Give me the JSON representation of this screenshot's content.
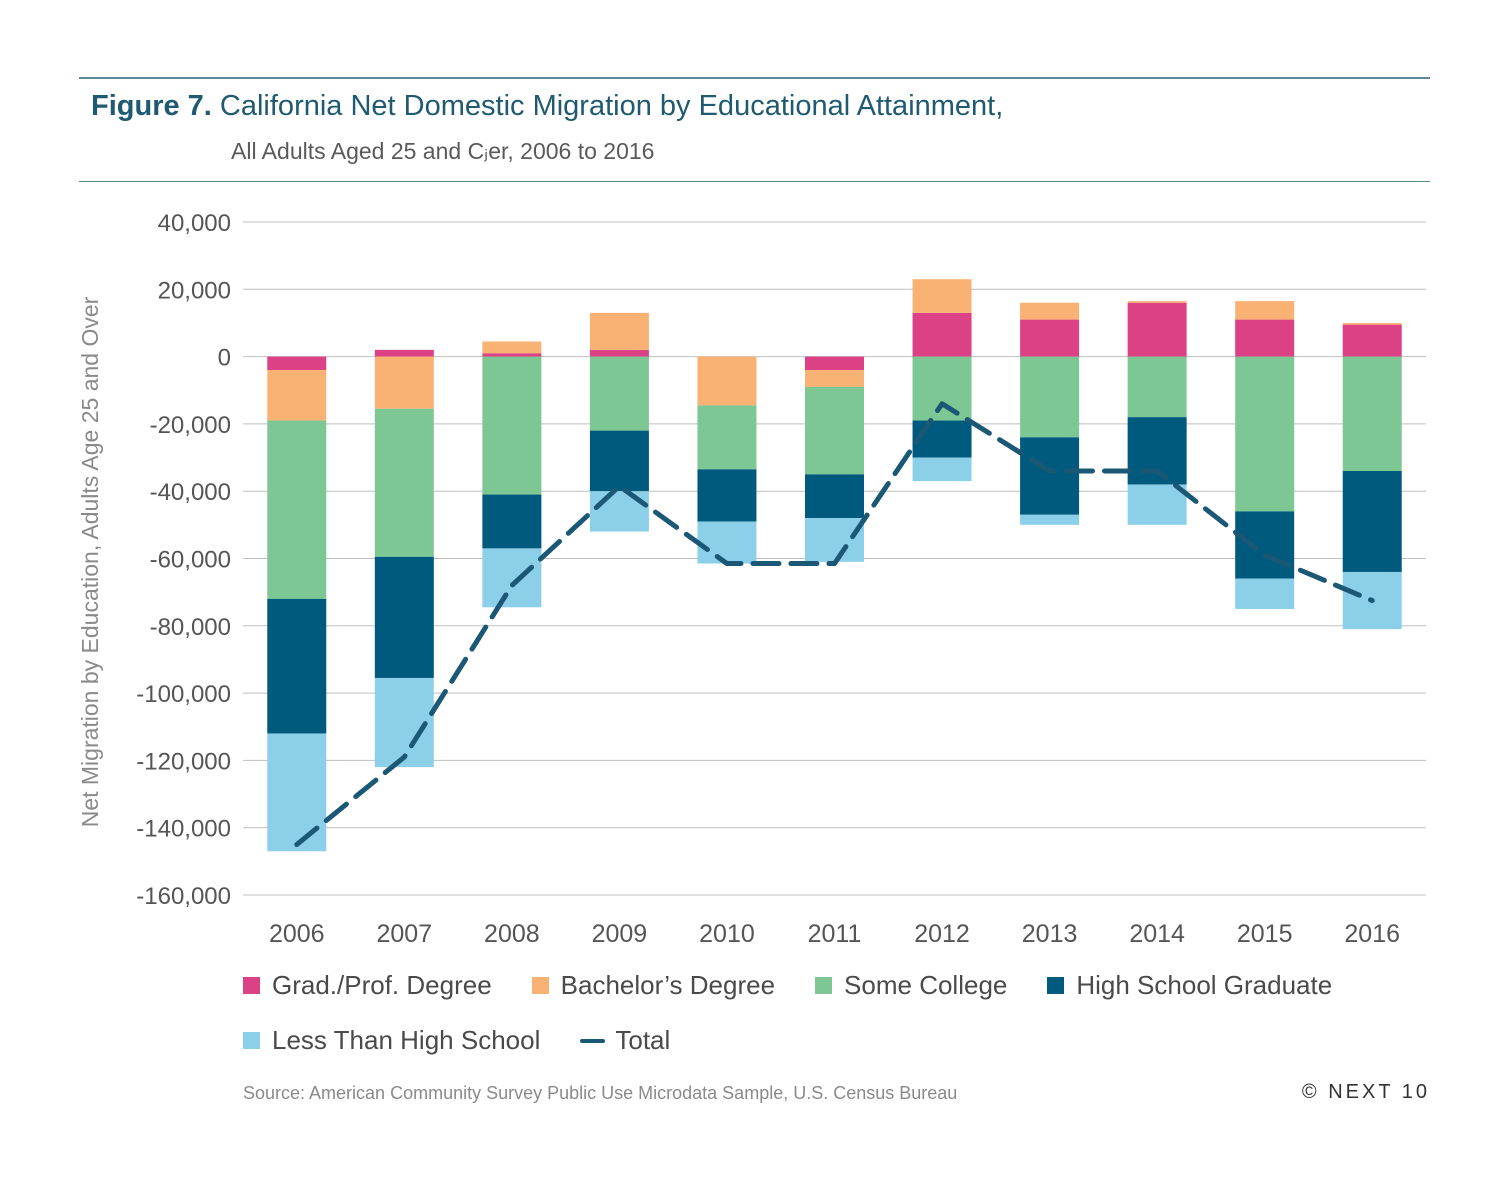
{
  "header": {
    "figure_label": "Figure 7.",
    "title": "California Net Domestic Migration by Educational Attainment,",
    "subtitle": "All Adults Aged 25 and Cⱼer, 2006 to 2016"
  },
  "colors": {
    "rule": "#5b8797",
    "grad_prof": "#dc4186",
    "bachelors": "#f9b273",
    "some_college": "#7dc794",
    "high_school": "#005a7d",
    "less_than_hs": "#8bd0e8",
    "total": "#1b5875",
    "grid": "#bfbfbf",
    "axis_text": "#555555"
  },
  "chart_data": {
    "type": "bar",
    "stacked": true,
    "title": "",
    "xlabel": "",
    "ylabel": "Net Migration by Education, Adults Age 25 and Over",
    "ylim": [
      -160000,
      40000
    ],
    "yticks": [
      40000,
      20000,
      0,
      -20000,
      -40000,
      -60000,
      -80000,
      -100000,
      -120000,
      -140000,
      -160000
    ],
    "ytick_labels": [
      "40,000",
      "20,000",
      "0",
      "-20,000",
      "-40,000",
      "-60,000",
      "-80,000",
      "-100,000",
      "-120,000",
      "-140,000",
      "-160,000"
    ],
    "grid": true,
    "categories": [
      "2006",
      "2007",
      "2008",
      "2009",
      "2010",
      "2011",
      "2012",
      "2013",
      "2014",
      "2015",
      "2016"
    ],
    "series": [
      {
        "name": "Grad./Prof. Degree",
        "color_key": "grad_prof",
        "values": [
          -4000,
          2000,
          1000,
          2000,
          0,
          -4000,
          13000,
          11000,
          16000,
          11000,
          9500
        ]
      },
      {
        "name": "Bachelor’s Degree",
        "color_key": "bachelors",
        "values": [
          -15000,
          -15500,
          3500,
          11000,
          -14500,
          -5000,
          10000,
          5000,
          500,
          5500,
          500
        ]
      },
      {
        "name": "Some College",
        "color_key": "some_college",
        "values": [
          -53000,
          -44000,
          -41000,
          -22000,
          -19000,
          -26000,
          -19000,
          -24000,
          -18000,
          -46000,
          -34000
        ]
      },
      {
        "name": "High School Graduate",
        "color_key": "high_school",
        "values": [
          -40000,
          -36000,
          -16000,
          -18000,
          -15500,
          -13000,
          -11000,
          -23000,
          -20000,
          -20000,
          -30000
        ]
      },
      {
        "name": "Less Than High School",
        "color_key": "less_than_hs",
        "values": [
          -35000,
          -26500,
          -17500,
          -12000,
          -12500,
          -13000,
          -7000,
          -3000,
          -12000,
          -9000,
          -17000
        ]
      }
    ],
    "total": {
      "name": "Total",
      "style": "dashed",
      "values": [
        -145000,
        -119000,
        -68000,
        -38500,
        -61500,
        -61500,
        -14000,
        -34000,
        -34000,
        -59000,
        -72500
      ]
    },
    "legend_position": "bottom"
  },
  "footer": {
    "source": "Source: American Community Survey Public Use Microdata Sample, U.S. Census Bureau",
    "credit": "© NEXT 10"
  }
}
